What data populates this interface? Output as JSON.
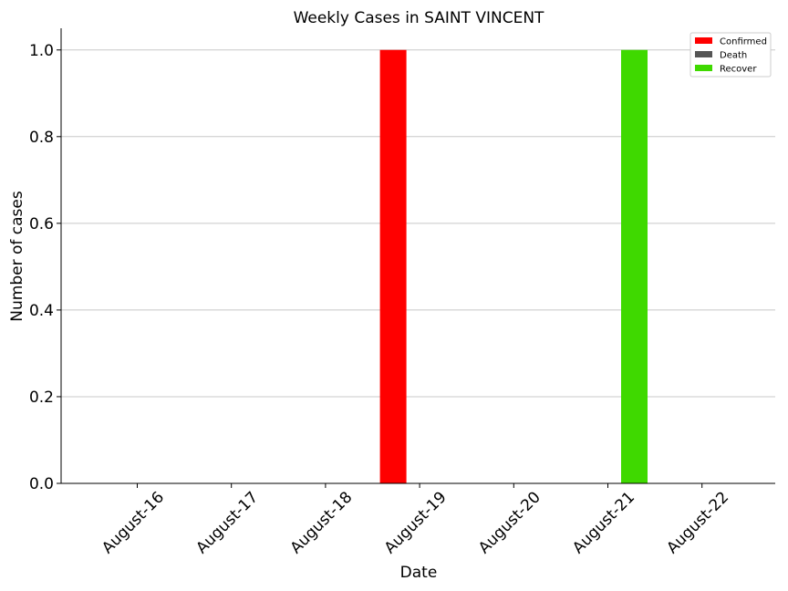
{
  "chart_data": {
    "type": "bar",
    "title": "Weekly Cases in SAINT VINCENT",
    "xlabel": "Date",
    "ylabel": "Number of cases",
    "categories": [
      "August-16",
      "August-17",
      "August-18",
      "August-19",
      "August-20",
      "August-21",
      "August-22"
    ],
    "series": [
      {
        "name": "Confirmed",
        "color": "#ff0000",
        "values": [
          0,
          0,
          0,
          1,
          0,
          0,
          0
        ]
      },
      {
        "name": "Death",
        "color": "#555555",
        "values": [
          0,
          0,
          0,
          0,
          0,
          0,
          0
        ]
      },
      {
        "name": "Recover",
        "color": "#3fd900",
        "values": [
          0,
          0,
          0,
          0,
          0,
          1,
          0
        ]
      }
    ],
    "ylim": [
      0,
      1.05
    ],
    "yticks": [
      "0.0",
      "0.2",
      "0.4",
      "0.6",
      "0.8",
      "1.0"
    ],
    "grid": "horizontal",
    "legend_position": "top-right"
  }
}
